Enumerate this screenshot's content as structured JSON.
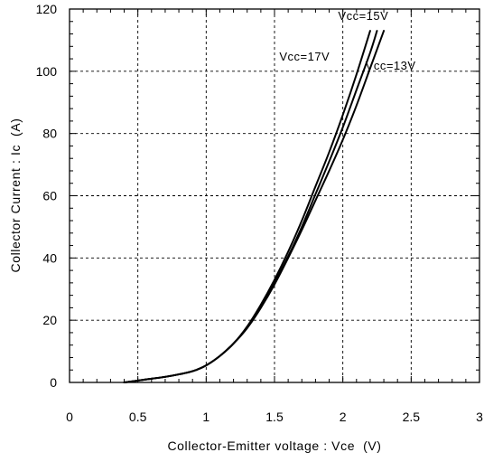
{
  "chart_data": {
    "type": "line",
    "title": "",
    "xlabel": "Collector-Emitter voltage : Vce  (V)",
    "ylabel": "Collector Current : Ic  (A)",
    "xlim": [
      0,
      3
    ],
    "ylim": [
      0,
      120
    ],
    "xticks": [
      0,
      0.5,
      1,
      1.5,
      2,
      2.5,
      3
    ],
    "xtick_labels": [
      "0",
      "0.5",
      "1",
      "1.5",
      "2",
      "2.5",
      "3"
    ],
    "yticks": [
      0,
      20,
      40,
      60,
      80,
      100,
      120
    ],
    "ytick_labels": [
      "0",
      "20",
      "40",
      "60",
      "80",
      "100",
      "120"
    ],
    "grid": "dashed",
    "series": [
      {
        "name": "Vcc=17V",
        "x": [
          0.4,
          0.5,
          0.6,
          0.7,
          0.8,
          0.9,
          1.0,
          1.1,
          1.2,
          1.3,
          1.4,
          1.5,
          1.6,
          1.7,
          1.8,
          1.9,
          2.0,
          2.1,
          2.2
        ],
        "y": [
          0,
          0.6,
          1.2,
          1.8,
          2.6,
          3.6,
          5.5,
          8.5,
          12.5,
          18,
          25,
          33,
          42,
          52,
          63,
          74,
          86,
          99,
          113
        ]
      },
      {
        "name": "Vcc=15V",
        "x": [
          0.4,
          0.5,
          0.6,
          0.7,
          0.8,
          0.9,
          1.0,
          1.1,
          1.2,
          1.3,
          1.4,
          1.5,
          1.6,
          1.7,
          1.8,
          1.9,
          2.0,
          2.1,
          2.2,
          2.25
        ],
        "y": [
          0,
          0.6,
          1.2,
          1.8,
          2.6,
          3.6,
          5.5,
          8.5,
          12.5,
          17.5,
          24,
          32,
          40.5,
          50,
          60.5,
          71,
          82,
          94,
          106,
          113
        ]
      },
      {
        "name": "Vcc=13V",
        "x": [
          0.4,
          0.5,
          0.6,
          0.7,
          0.8,
          0.9,
          1.0,
          1.1,
          1.2,
          1.3,
          1.4,
          1.5,
          1.6,
          1.7,
          1.8,
          1.9,
          2.0,
          2.1,
          2.2,
          2.3
        ],
        "y": [
          0,
          0.6,
          1.2,
          1.8,
          2.6,
          3.6,
          5.5,
          8.5,
          12.5,
          17.5,
          24,
          31.5,
          40,
          49,
          58.5,
          68,
          78,
          89,
          101,
          113
        ]
      }
    ],
    "annotations": [
      {
        "text": "Vcc=15V",
        "x": 2.15,
        "y": 116.5
      },
      {
        "text": "Vcc=17V",
        "x": 1.72,
        "y": 103.5
      },
      {
        "text": "Vcc=13V",
        "x": 2.35,
        "y": 100.5
      }
    ]
  },
  "colors": {
    "line": "#000000",
    "grid": "#000000",
    "background": "#ffffff"
  }
}
